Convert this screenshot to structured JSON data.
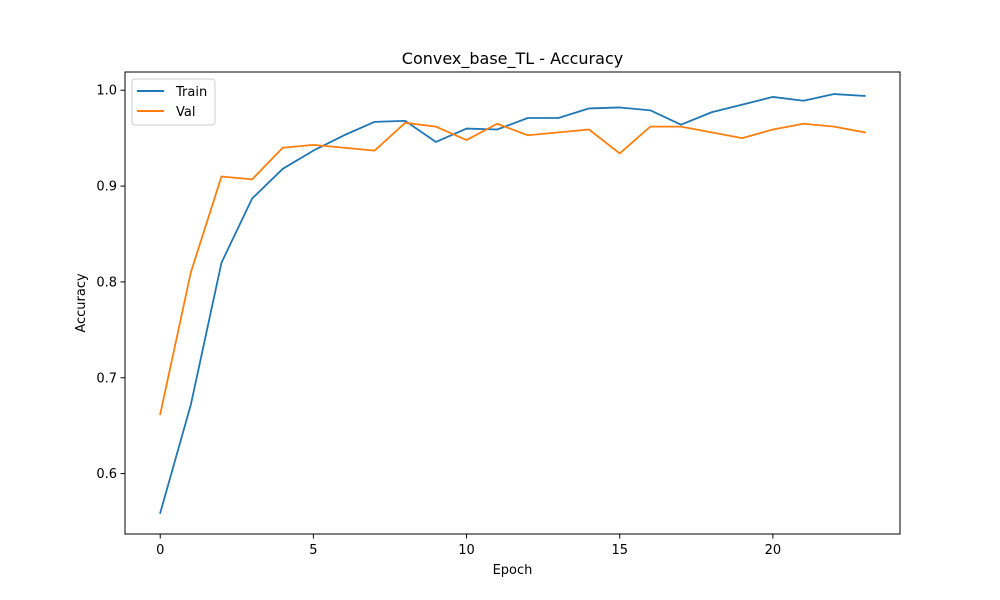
{
  "chart_data": {
    "type": "line",
    "title": "Convex_base_TL - Accuracy",
    "xlabel": "Epoch",
    "ylabel": "Accuracy",
    "xlim": [
      -1.15,
      24.15
    ],
    "ylim": [
      0.537,
      1.019
    ],
    "xticks": [
      0,
      5,
      10,
      15,
      20
    ],
    "yticks": [
      0.6,
      0.7,
      0.8,
      0.9,
      1.0
    ],
    "xtick_labels": [
      "0",
      "5",
      "10",
      "15",
      "20"
    ],
    "ytick_labels": [
      "0.6",
      "0.7",
      "0.8",
      "0.9",
      "1.0"
    ],
    "grid": false,
    "legend_position": "top-left",
    "x": [
      0,
      1,
      2,
      3,
      4,
      5,
      6,
      7,
      8,
      9,
      10,
      11,
      12,
      13,
      14,
      15,
      16,
      17,
      18,
      19,
      20,
      21,
      22,
      23
    ],
    "series": [
      {
        "name": "Train",
        "color": "#1f77b4",
        "values": [
          0.559,
          0.672,
          0.82,
          0.887,
          0.918,
          0.937,
          0.953,
          0.967,
          0.968,
          0.946,
          0.96,
          0.959,
          0.971,
          0.971,
          0.981,
          0.982,
          0.979,
          0.964,
          0.977,
          0.985,
          0.993,
          0.989,
          0.996,
          0.994
        ]
      },
      {
        "name": "Val",
        "color": "#ff7f0e",
        "values": [
          0.662,
          0.81,
          0.91,
          0.907,
          0.94,
          0.943,
          0.94,
          0.937,
          0.966,
          0.962,
          0.948,
          0.965,
          0.953,
          0.956,
          0.959,
          0.934,
          0.962,
          0.962,
          0.956,
          0.95,
          0.959,
          0.965,
          0.962,
          0.956
        ]
      }
    ]
  }
}
